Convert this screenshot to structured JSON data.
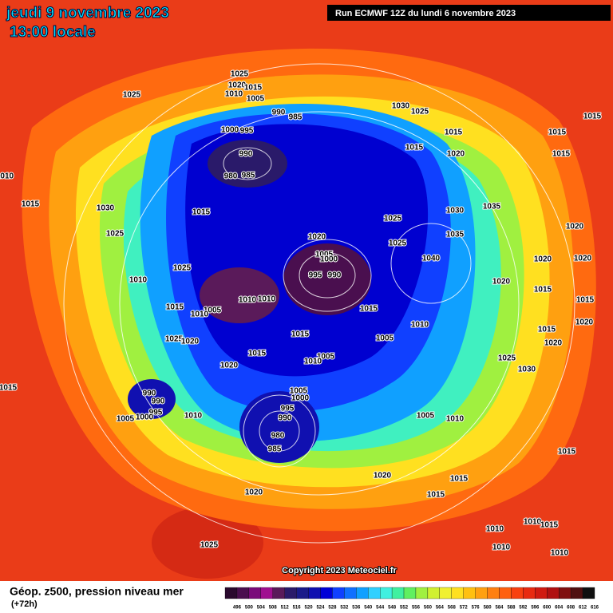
{
  "header": {
    "date": "jeudi 9 novembre 2023",
    "time": "13:00 locale",
    "run": "Run ECMWF 12Z du lundi 6 novembre 2023"
  },
  "copyright": "Copyright 2023 Meteociel.fr",
  "legend": {
    "title": "Géop. z500, pression niveau mer",
    "step": "(+72h)",
    "labels": [
      496,
      500,
      504,
      508,
      512,
      516,
      520,
      524,
      528,
      532,
      536,
      540,
      544,
      548,
      552,
      556,
      560,
      564,
      568,
      572,
      576,
      580,
      584,
      588,
      592,
      596,
      600,
      604,
      608,
      612,
      616
    ],
    "colors": [
      "#2a0a2e",
      "#4a0f4f",
      "#7a0a7a",
      "#a01090",
      "#5a1a5a",
      "#2a1a6a",
      "#1a1a8a",
      "#1010b0",
      "#0000d8",
      "#1040ff",
      "#1070ff",
      "#10a0ff",
      "#30d0ff",
      "#40f0e0",
      "#40f0a0",
      "#60f060",
      "#a0f040",
      "#d0f030",
      "#f0f030",
      "#ffe020",
      "#ffc010",
      "#ffa010",
      "#ff8010",
      "#ff6010",
      "#f84010",
      "#e82a10",
      "#d01a10",
      "#b01010",
      "#801010",
      "#501010",
      "#101010"
    ]
  },
  "isobar_labels": [
    1025,
    1020,
    1015,
    1010,
    1005,
    1025,
    990,
    985,
    1030,
    1025,
    1015,
    1000,
    995,
    1015,
    1015,
    1015,
    1020,
    1015,
    990,
    980,
    985,
    1010,
    1015,
    1030,
    1015,
    1025,
    1030,
    1035,
    1020,
    1025,
    1020,
    1035,
    1025,
    1005,
    1000,
    1040,
    1020,
    1020,
    1025,
    995,
    990,
    1010,
    1020,
    1015,
    1015,
    1010,
    1010,
    1005,
    1010,
    1015,
    1015,
    1010,
    1015,
    1005,
    1015,
    1020,
    1025,
    1020,
    1020,
    1015,
    1005,
    1010,
    1025,
    1030,
    1020,
    1015,
    990,
    1005,
    1000,
    990,
    995,
    1005,
    1000,
    1010,
    995,
    990,
    1005,
    1010,
    980,
    985,
    1015,
    1020,
    1015,
    1015,
    1020,
    1010,
    1010,
    1015,
    1025,
    1010,
    1010
  ]
}
